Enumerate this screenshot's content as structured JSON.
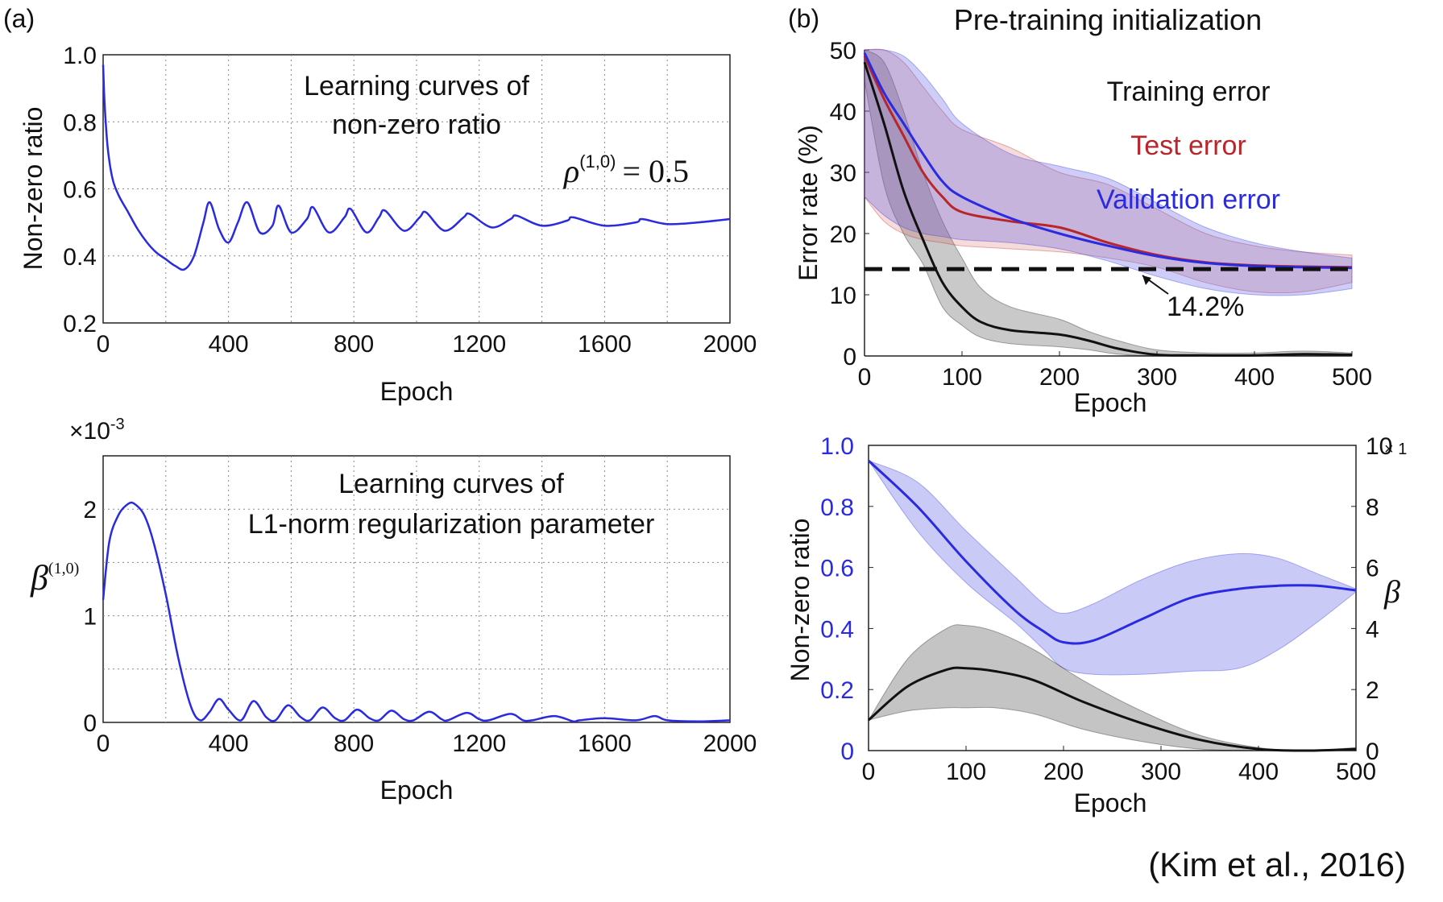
{
  "panels": {
    "a": "(a)",
    "b": "(b)"
  },
  "citation": "(Kim et al., 2016)",
  "chart_data": [
    {
      "id": "a_top",
      "type": "line",
      "title": "Learning curves of non-zero ratio",
      "title_lines": [
        "Learning curves of",
        "non-zero ratio"
      ],
      "annotation": "ρ(1,0) = 0.5",
      "annotation_parts": {
        "symbol": "ρ",
        "superscript": "(1,0)",
        "rest": "= 0.5"
      },
      "xlabel": "Epoch",
      "ylabel": "Non-zero ratio",
      "xlim": [
        0,
        2000
      ],
      "ylim": [
        0.2,
        1.0
      ],
      "xticks": [
        0,
        400,
        800,
        1200,
        1600,
        2000
      ],
      "xtick_labels": [
        "0",
        "400",
        "800",
        "1200",
        "1600",
        "2000"
      ],
      "yticks": [
        0.2,
        0.4,
        0.6,
        0.8,
        1.0
      ],
      "ytick_labels": [
        "0.2",
        "0.4",
        "0.6",
        "0.8",
        "1.0"
      ],
      "grid": true,
      "series": [
        {
          "color": "#2a2ae0",
          "x": [
            0,
            5,
            15,
            30,
            50,
            80,
            110,
            140,
            170,
            200,
            230,
            260,
            290,
            320,
            340,
            370,
            400,
            430,
            460,
            500,
            540,
            560,
            600,
            650,
            670,
            720,
            770,
            790,
            840,
            880,
            900,
            960,
            1010,
            1030,
            1090,
            1150,
            1170,
            1240,
            1300,
            1320,
            1400,
            1480,
            1500,
            1600,
            1700,
            1720,
            1800,
            1900,
            2000
          ],
          "y": [
            0.97,
            0.85,
            0.72,
            0.63,
            0.58,
            0.53,
            0.48,
            0.44,
            0.41,
            0.39,
            0.37,
            0.36,
            0.4,
            0.5,
            0.56,
            0.48,
            0.44,
            0.5,
            0.56,
            0.47,
            0.49,
            0.55,
            0.47,
            0.51,
            0.545,
            0.47,
            0.515,
            0.54,
            0.47,
            0.515,
            0.535,
            0.475,
            0.515,
            0.53,
            0.475,
            0.515,
            0.525,
            0.485,
            0.51,
            0.52,
            0.49,
            0.505,
            0.515,
            0.49,
            0.5,
            0.51,
            0.495,
            0.5,
            0.51
          ]
        }
      ]
    },
    {
      "id": "a_bottom",
      "type": "line",
      "title": "Learning curves of L1-norm regularization parameter",
      "title_lines": [
        "Learning curves of",
        "L1-norm regularization parameter"
      ],
      "scale_label": "×10-3",
      "scale_parts": {
        "base": "×10",
        "exp": "-3"
      },
      "ylabel": "β(1,0)",
      "ylabel_parts": {
        "symbol": "β",
        "superscript": "(1,0)"
      },
      "xlabel": "Epoch",
      "xlim": [
        0,
        2000
      ],
      "ylim": [
        0,
        2.5
      ],
      "xticks": [
        0,
        400,
        800,
        1200,
        1600,
        2000
      ],
      "xtick_labels": [
        "0",
        "400",
        "800",
        "1200",
        "1600",
        "2000"
      ],
      "yticks": [
        0,
        1,
        2
      ],
      "ytick_labels": [
        "0",
        "1",
        "2"
      ],
      "grid": true,
      "series": [
        {
          "color": "#2a2ae0",
          "x": [
            0,
            20,
            50,
            80,
            100,
            130,
            160,
            200,
            240,
            280,
            310,
            340,
            370,
            400,
            440,
            480,
            520,
            550,
            590,
            630,
            660,
            700,
            740,
            770,
            810,
            850,
            880,
            920,
            960,
            990,
            1040,
            1080,
            1100,
            1160,
            1200,
            1230,
            1300,
            1340,
            1370,
            1440,
            1500,
            1520,
            1600,
            1700,
            1760,
            1800,
            1900,
            2000
          ],
          "y": [
            1.15,
            1.7,
            1.95,
            2.05,
            2.05,
            1.95,
            1.7,
            1.2,
            0.6,
            0.15,
            0.02,
            0.1,
            0.22,
            0.12,
            0.02,
            0.2,
            0.05,
            0.02,
            0.16,
            0.05,
            0.02,
            0.14,
            0.04,
            0.02,
            0.12,
            0.04,
            0.02,
            0.11,
            0.03,
            0.02,
            0.1,
            0.03,
            0.02,
            0.09,
            0.03,
            0.02,
            0.08,
            0.02,
            0.02,
            0.06,
            0.01,
            0.02,
            0.04,
            0.02,
            0.06,
            0.02,
            0.01,
            0.02
          ]
        }
      ]
    },
    {
      "id": "b_top",
      "type": "line",
      "title": "Pre-training initialization",
      "xlabel": "Epoch",
      "ylabel": "Error rate (%)",
      "xlim": [
        0,
        500
      ],
      "ylim": [
        0,
        50
      ],
      "xticks": [
        0,
        100,
        200,
        300,
        400,
        500
      ],
      "xtick_labels": [
        "0",
        "100",
        "200",
        "300",
        "400",
        "500"
      ],
      "yticks": [
        0,
        10,
        20,
        30,
        40,
        50
      ],
      "ytick_labels": [
        "0",
        "10",
        "20",
        "30",
        "40",
        "50"
      ],
      "grid": false,
      "legend": [
        {
          "label": "Training error",
          "color": "#111111"
        },
        {
          "label": "Test error",
          "color": "#b8252a"
        },
        {
          "label": "Validation error",
          "color": "#2a2ae0"
        }
      ],
      "reference_line": {
        "y": 14.2,
        "label": "14.2%"
      },
      "series": [
        {
          "name": "Training error",
          "color": "#111111",
          "x": [
            0,
            20,
            40,
            60,
            80,
            100,
            120,
            150,
            200,
            230,
            260,
            300,
            350,
            400,
            450,
            500
          ],
          "y": [
            48,
            38,
            27,
            19,
            12,
            8,
            5.5,
            4.2,
            3.5,
            2.5,
            1.2,
            0.2,
            0.1,
            0.1,
            0.3,
            0.2
          ],
          "lower": [
            45,
            28,
            20,
            15,
            8,
            5,
            3,
            2,
            1.5,
            1,
            0.3,
            0,
            0,
            0,
            0,
            0
          ],
          "upper": [
            50,
            48,
            40,
            30,
            22,
            16,
            11,
            8,
            6,
            4,
            2.5,
            1,
            0.5,
            0.5,
            0.8,
            0.5
          ]
        },
        {
          "name": "Test error",
          "color": "#b8252a",
          "x": [
            0,
            20,
            40,
            60,
            80,
            100,
            150,
            200,
            250,
            300,
            350,
            400,
            450,
            500
          ],
          "y": [
            49,
            42,
            36,
            30,
            26,
            23.5,
            22,
            21,
            18.5,
            16.5,
            15.3,
            14.8,
            14.6,
            14.5
          ],
          "lower": [
            26,
            22,
            20,
            19,
            18.5,
            18,
            17.5,
            17,
            16,
            14.5,
            12,
            10.5,
            10.5,
            12
          ],
          "upper": [
            50,
            50,
            48,
            44,
            40,
            37,
            34,
            30,
            28,
            24,
            20,
            18,
            17,
            16.5
          ]
        },
        {
          "name": "Validation error",
          "color": "#2a2ae0",
          "x": [
            0,
            20,
            40,
            60,
            80,
            100,
            150,
            200,
            250,
            300,
            350,
            400,
            450,
            500
          ],
          "y": [
            49.5,
            43,
            38,
            33,
            28.5,
            26,
            22.5,
            20,
            18,
            16.3,
            15.2,
            14.7,
            14.5,
            14.4
          ],
          "lower": [
            26,
            23,
            21,
            20,
            19.5,
            19,
            18.5,
            17.5,
            15.5,
            13,
            11,
            10,
            10,
            11
          ],
          "upper": [
            50,
            50,
            49,
            46,
            42,
            38,
            33,
            31,
            29,
            25,
            21,
            18.5,
            17,
            16
          ]
        }
      ]
    },
    {
      "id": "b_bottom",
      "type": "line",
      "xlabel": "Epoch",
      "ylabel": "Non-zero ratio",
      "ylabel_right": "β",
      "xlim": [
        0,
        500
      ],
      "ylim": [
        0,
        1.0
      ],
      "ylim_right": [
        0,
        10
      ],
      "xticks": [
        0,
        100,
        200,
        300,
        400,
        500
      ],
      "xtick_labels": [
        "0",
        "100",
        "200",
        "300",
        "400",
        "500"
      ],
      "yticks": [
        0,
        0.2,
        0.4,
        0.6,
        0.8,
        1.0
      ],
      "ytick_labels": [
        "0",
        "0.2",
        "0.4",
        "0.6",
        "0.8",
        "1.0"
      ],
      "yticks_right": [
        0,
        2,
        4,
        6,
        8,
        10
      ],
      "ytick_labels_right": [
        "0",
        "2",
        "4",
        "6",
        "8",
        "10"
      ],
      "right_scale_label": "× 1",
      "left_axis_color": "#2a2ae0",
      "grid": false,
      "series": [
        {
          "axis": "left",
          "color": "#2a2ae0",
          "x": [
            0,
            50,
            100,
            150,
            180,
            200,
            230,
            280,
            330,
            380,
            420,
            460,
            500
          ],
          "y": [
            0.95,
            0.8,
            0.62,
            0.46,
            0.39,
            0.355,
            0.36,
            0.43,
            0.5,
            0.53,
            0.54,
            0.54,
            0.525
          ],
          "lower": [
            0.95,
            0.72,
            0.55,
            0.42,
            0.33,
            0.27,
            0.25,
            0.25,
            0.26,
            0.27,
            0.33,
            0.42,
            0.52
          ],
          "upper": [
            0.95,
            0.88,
            0.72,
            0.57,
            0.48,
            0.45,
            0.48,
            0.56,
            0.62,
            0.645,
            0.63,
            0.58,
            0.53
          ]
        },
        {
          "axis": "right",
          "color": "#111111",
          "x": [
            0,
            40,
            80,
            100,
            130,
            170,
            220,
            280,
            340,
            400,
            450,
            500
          ],
          "y": [
            1.0,
            2.1,
            2.65,
            2.7,
            2.6,
            2.3,
            1.6,
            0.9,
            0.35,
            0.05,
            0.0,
            0.05
          ],
          "lower": [
            1.0,
            1.3,
            1.4,
            1.4,
            1.4,
            1.2,
            0.7,
            0.3,
            0.05,
            0.0,
            0.0,
            0.0
          ],
          "upper": [
            1.0,
            3.0,
            4.0,
            4.1,
            3.9,
            3.3,
            2.3,
            1.3,
            0.5,
            0.1,
            0.0,
            0.1
          ]
        }
      ]
    }
  ]
}
